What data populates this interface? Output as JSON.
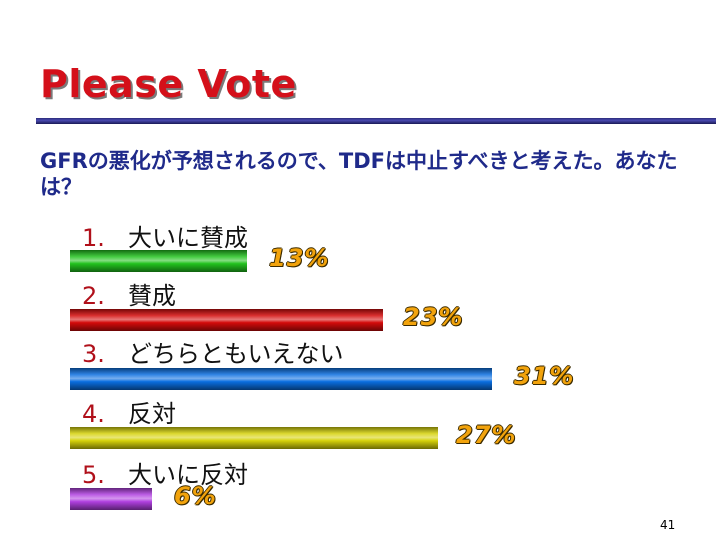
{
  "slide": {
    "title": "Please Vote",
    "question": "GFRの悪化が予想されるので、TDFは中止すべきと考えた。あなたは？",
    "page_number": "41"
  },
  "options": [
    {
      "num": "1.",
      "label": "大いに賛成"
    },
    {
      "num": "2.",
      "label": "賛成"
    },
    {
      "num": "3.",
      "label": "どちらともいえない"
    },
    {
      "num": "4.",
      "label": "反対"
    },
    {
      "num": "5.",
      "label": "大いに反対"
    }
  ],
  "chart_data": {
    "type": "bar",
    "orientation": "horizontal",
    "categories": [
      "大いに賛成",
      "賛成",
      "どちらともいえない",
      "反対",
      "大いに反対"
    ],
    "values": [
      13,
      23,
      31,
      27,
      6
    ],
    "value_labels": [
      "13%",
      "23%",
      "31%",
      "27%",
      "6%"
    ],
    "colors": [
      "#22c21e",
      "#d40a0a",
      "#0a6ee0",
      "#d6d20a",
      "#b040e0"
    ],
    "xlim": [
      0,
      31
    ]
  }
}
